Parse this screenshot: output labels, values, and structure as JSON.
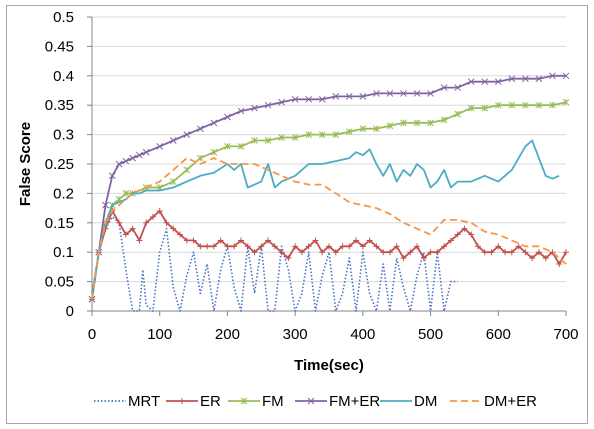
{
  "chart_data": {
    "type": "line",
    "title": "",
    "xlabel": "Time(sec)",
    "ylabel": "False Score",
    "xlim": [
      0,
      700
    ],
    "ylim": [
      0,
      0.5
    ],
    "xticks": [
      0,
      100,
      200,
      300,
      400,
      500,
      600,
      700
    ],
    "yticks": [
      0,
      0.05,
      0.1,
      0.15,
      0.2,
      0.25,
      0.3,
      0.35,
      0.4,
      0.45,
      0.5
    ],
    "ytick_labels": [
      "0",
      "0.05",
      "0.1",
      "0.15",
      "0.2",
      "0.25",
      "0.3",
      "0.35",
      "0.4",
      "0.45",
      "0.5"
    ],
    "grid": "horizontal",
    "legend": "bottom",
    "series": [
      {
        "name": "MRT",
        "color": "#4472c4",
        "style": "dotted",
        "marker": "none",
        "x": [
          0,
          10,
          20,
          30,
          40,
          50,
          60,
          70,
          75,
          80,
          90,
          100,
          110,
          120,
          130,
          140,
          150,
          160,
          170,
          180,
          190,
          200,
          210,
          220,
          230,
          240,
          250,
          260,
          270,
          280,
          290,
          300,
          310,
          320,
          330,
          340,
          350,
          360,
          370,
          380,
          390,
          400,
          410,
          420,
          430,
          440,
          450,
          460,
          470,
          480,
          490,
          500,
          510,
          520,
          530,
          540
        ],
        "y": [
          0.03,
          0.1,
          0.14,
          0.16,
          0.15,
          0.07,
          0.0,
          0.0,
          0.07,
          0.01,
          0.0,
          0.1,
          0.14,
          0.04,
          0.0,
          0.06,
          0.1,
          0.03,
          0.08,
          0.0,
          0.07,
          0.11,
          0.04,
          0.0,
          0.11,
          0.03,
          0.11,
          0.0,
          0.0,
          0.11,
          0.07,
          0.0,
          0.03,
          0.1,
          0.0,
          0.06,
          0.1,
          0.0,
          0.03,
          0.09,
          0.0,
          0.1,
          0.03,
          0.0,
          0.08,
          0.0,
          0.09,
          0.04,
          0.0,
          0.06,
          0.1,
          0.0,
          0.1,
          0.0,
          0.05,
          0.05
        ]
      },
      {
        "name": "ER",
        "color": "#c0504d",
        "style": "solid",
        "marker": "plus",
        "x": [
          0,
          10,
          20,
          30,
          40,
          50,
          60,
          70,
          80,
          90,
          100,
          110,
          120,
          130,
          140,
          150,
          160,
          170,
          180,
          190,
          200,
          210,
          220,
          230,
          240,
          250,
          260,
          270,
          280,
          290,
          300,
          310,
          320,
          330,
          340,
          350,
          360,
          370,
          380,
          390,
          400,
          410,
          420,
          430,
          440,
          450,
          460,
          470,
          480,
          490,
          500,
          510,
          520,
          530,
          540,
          550,
          560,
          570,
          580,
          590,
          600,
          610,
          620,
          630,
          640,
          650,
          660,
          670,
          680,
          690,
          700
        ],
        "y": [
          0.02,
          0.1,
          0.14,
          0.17,
          0.15,
          0.13,
          0.14,
          0.12,
          0.15,
          0.16,
          0.17,
          0.15,
          0.14,
          0.13,
          0.12,
          0.12,
          0.11,
          0.11,
          0.11,
          0.12,
          0.11,
          0.11,
          0.12,
          0.11,
          0.1,
          0.11,
          0.12,
          0.11,
          0.1,
          0.09,
          0.11,
          0.1,
          0.11,
          0.12,
          0.1,
          0.11,
          0.1,
          0.11,
          0.11,
          0.12,
          0.11,
          0.12,
          0.11,
          0.1,
          0.1,
          0.11,
          0.09,
          0.1,
          0.11,
          0.09,
          0.1,
          0.1,
          0.11,
          0.12,
          0.13,
          0.14,
          0.13,
          0.11,
          0.1,
          0.1,
          0.11,
          0.1,
          0.1,
          0.11,
          0.1,
          0.09,
          0.1,
          0.09,
          0.1,
          0.08,
          0.1
        ]
      },
      {
        "name": "FM",
        "color": "#9bbb59",
        "style": "solid",
        "marker": "cross",
        "x": [
          0,
          10,
          20,
          30,
          40,
          50,
          60,
          80,
          100,
          120,
          140,
          160,
          180,
          200,
          220,
          240,
          260,
          280,
          300,
          320,
          340,
          360,
          380,
          400,
          420,
          440,
          460,
          480,
          500,
          520,
          540,
          560,
          580,
          600,
          620,
          640,
          660,
          680,
          700
        ],
        "y": [
          0.02,
          0.1,
          0.15,
          0.18,
          0.19,
          0.2,
          0.2,
          0.21,
          0.21,
          0.22,
          0.24,
          0.26,
          0.27,
          0.28,
          0.28,
          0.29,
          0.29,
          0.295,
          0.295,
          0.3,
          0.3,
          0.3,
          0.305,
          0.31,
          0.31,
          0.315,
          0.32,
          0.32,
          0.32,
          0.325,
          0.335,
          0.345,
          0.345,
          0.35,
          0.35,
          0.35,
          0.35,
          0.35,
          0.355
        ]
      },
      {
        "name": "FM+ER",
        "color": "#8064a2",
        "style": "solid",
        "marker": "x",
        "x": [
          0,
          10,
          20,
          30,
          40,
          50,
          60,
          70,
          80,
          100,
          120,
          140,
          160,
          180,
          200,
          220,
          240,
          260,
          280,
          300,
          320,
          340,
          360,
          380,
          400,
          420,
          440,
          460,
          480,
          500,
          520,
          540,
          560,
          580,
          600,
          620,
          640,
          660,
          680,
          700
        ],
        "y": [
          0.02,
          0.1,
          0.18,
          0.23,
          0.25,
          0.255,
          0.26,
          0.265,
          0.27,
          0.28,
          0.29,
          0.3,
          0.31,
          0.32,
          0.33,
          0.34,
          0.345,
          0.35,
          0.355,
          0.36,
          0.36,
          0.36,
          0.365,
          0.365,
          0.365,
          0.37,
          0.37,
          0.37,
          0.37,
          0.37,
          0.38,
          0.38,
          0.39,
          0.39,
          0.39,
          0.395,
          0.395,
          0.395,
          0.4,
          0.4
        ]
      },
      {
        "name": "DM",
        "color": "#4bacc6",
        "style": "solid",
        "marker": "none",
        "x": [
          0,
          10,
          20,
          30,
          40,
          50,
          60,
          70,
          80,
          100,
          120,
          140,
          160,
          180,
          200,
          210,
          220,
          230,
          240,
          250,
          260,
          270,
          280,
          300,
          320,
          340,
          360,
          380,
          390,
          400,
          410,
          420,
          430,
          440,
          450,
          460,
          470,
          480,
          490,
          500,
          510,
          520,
          530,
          540,
          560,
          580,
          600,
          620,
          640,
          650,
          660,
          670,
          680,
          690
        ],
        "y": [
          0.02,
          0.1,
          0.15,
          0.18,
          0.185,
          0.19,
          0.2,
          0.2,
          0.205,
          0.205,
          0.21,
          0.22,
          0.23,
          0.235,
          0.25,
          0.24,
          0.25,
          0.21,
          0.215,
          0.22,
          0.25,
          0.21,
          0.22,
          0.23,
          0.25,
          0.25,
          0.255,
          0.26,
          0.27,
          0.265,
          0.275,
          0.25,
          0.23,
          0.25,
          0.22,
          0.24,
          0.23,
          0.25,
          0.24,
          0.21,
          0.22,
          0.24,
          0.21,
          0.22,
          0.22,
          0.23,
          0.22,
          0.24,
          0.28,
          0.29,
          0.26,
          0.23,
          0.225,
          0.23
        ]
      },
      {
        "name": "DM+ER",
        "color": "#f79646",
        "style": "dashed",
        "marker": "none",
        "x": [
          0,
          10,
          20,
          30,
          40,
          60,
          80,
          100,
          120,
          140,
          160,
          180,
          200,
          220,
          240,
          260,
          280,
          300,
          320,
          340,
          360,
          380,
          400,
          420,
          440,
          460,
          480,
          500,
          520,
          540,
          560,
          580,
          600,
          620,
          640,
          660,
          680,
          700
        ],
        "y": [
          0.02,
          0.1,
          0.15,
          0.17,
          0.18,
          0.2,
          0.21,
          0.22,
          0.24,
          0.26,
          0.25,
          0.26,
          0.25,
          0.25,
          0.25,
          0.24,
          0.23,
          0.22,
          0.215,
          0.215,
          0.2,
          0.185,
          0.18,
          0.175,
          0.165,
          0.15,
          0.14,
          0.13,
          0.155,
          0.155,
          0.15,
          0.135,
          0.13,
          0.12,
          0.11,
          0.11,
          0.1,
          0.08
        ]
      }
    ]
  }
}
